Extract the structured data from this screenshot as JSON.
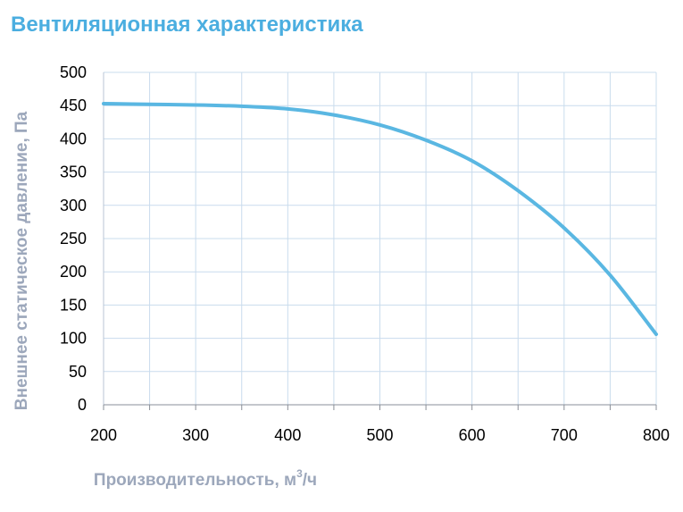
{
  "title": "Вентиляционная характеристика",
  "colors": {
    "title": "#4baee0",
    "curve": "#5ab7e2",
    "grid": "#c9dced",
    "axis_label": "#9ca7bb",
    "tick": "#000000"
  },
  "chart_data": {
    "type": "line",
    "title": "Вентиляционная характеристика",
    "xlabel": "Производительность, м³/ч",
    "ylabel": "Внешнее статическое давление, Па",
    "xlim": [
      200,
      800
    ],
    "ylim": [
      0,
      500
    ],
    "x_ticks": [
      200,
      300,
      400,
      500,
      600,
      700,
      800
    ],
    "y_ticks": [
      0,
      50,
      100,
      150,
      200,
      250,
      300,
      350,
      400,
      450,
      500
    ],
    "x_minor_step": 50,
    "grid": true,
    "series": [
      {
        "x": [
          200,
          250,
          300,
          350,
          400,
          450,
          500,
          550,
          600,
          650,
          700,
          750,
          800
        ],
        "y": [
          453,
          452,
          451,
          449,
          445,
          436,
          421,
          398,
          367,
          322,
          266,
          195,
          106
        ]
      }
    ]
  }
}
